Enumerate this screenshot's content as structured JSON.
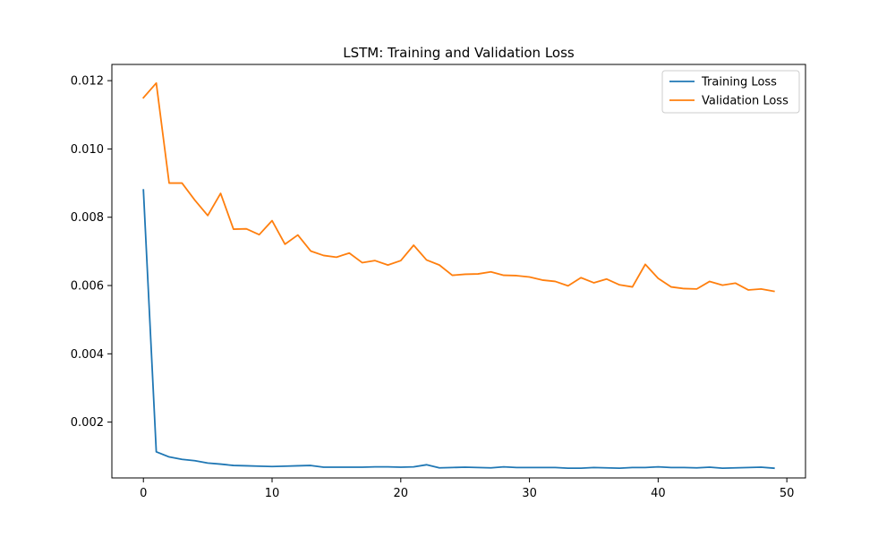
{
  "chart_data": {
    "type": "line",
    "title": "LSTM: Training and Validation Loss",
    "xlabel": "",
    "ylabel": "",
    "xlim": [
      -2.45,
      51.45
    ],
    "ylim": [
      0.000365,
      0.012475
    ],
    "x_ticks": [
      0,
      10,
      20,
      30,
      40,
      50
    ],
    "y_ticks": [
      0.002,
      0.004,
      0.006,
      0.008,
      0.01,
      0.012
    ],
    "y_tick_labels": [
      "0.002",
      "0.004",
      "0.006",
      "0.008",
      "0.010",
      "0.012"
    ],
    "grid": false,
    "legend_position": "top-right",
    "x": [
      0,
      1,
      2,
      3,
      4,
      5,
      6,
      7,
      8,
      9,
      10,
      11,
      12,
      13,
      14,
      15,
      16,
      17,
      18,
      19,
      20,
      21,
      22,
      23,
      24,
      25,
      26,
      27,
      28,
      29,
      30,
      31,
      32,
      33,
      34,
      35,
      36,
      37,
      38,
      39,
      40,
      41,
      42,
      43,
      44,
      45,
      46,
      47,
      48,
      49
    ],
    "series": [
      {
        "name": "Training Loss",
        "color": "#1f77b4",
        "values": [
          0.0088,
          0.00113,
          0.00098,
          0.00091,
          0.00087,
          0.0008,
          0.00077,
          0.00073,
          0.00072,
          0.00071,
          0.0007,
          0.00071,
          0.00072,
          0.00073,
          0.00068,
          0.00068,
          0.00068,
          0.00068,
          0.00069,
          0.00069,
          0.00068,
          0.00069,
          0.00075,
          0.00066,
          0.00067,
          0.00068,
          0.00067,
          0.00066,
          0.00069,
          0.00067,
          0.00067,
          0.00067,
          0.00067,
          0.00065,
          0.00065,
          0.00067,
          0.00066,
          0.00065,
          0.00067,
          0.00067,
          0.00069,
          0.00067,
          0.00067,
          0.00066,
          0.00068,
          0.00065,
          0.00066,
          0.00067,
          0.00068,
          0.00065
        ]
      },
      {
        "name": "Validation Loss",
        "color": "#ff7f0e",
        "values": [
          0.0115,
          0.01193,
          0.009,
          0.009,
          0.0085,
          0.00805,
          0.0087,
          0.00765,
          0.00766,
          0.00749,
          0.0079,
          0.00721,
          0.00748,
          0.00701,
          0.00688,
          0.00683,
          0.00695,
          0.00667,
          0.00673,
          0.0066,
          0.00673,
          0.00718,
          0.00675,
          0.0066,
          0.0063,
          0.00633,
          0.00634,
          0.0064,
          0.0063,
          0.00629,
          0.00625,
          0.00616,
          0.00612,
          0.00599,
          0.00623,
          0.00608,
          0.00619,
          0.00602,
          0.00596,
          0.00662,
          0.00621,
          0.00596,
          0.00591,
          0.0059,
          0.00612,
          0.00601,
          0.00607,
          0.00587,
          0.0059,
          0.00583
        ]
      }
    ]
  }
}
